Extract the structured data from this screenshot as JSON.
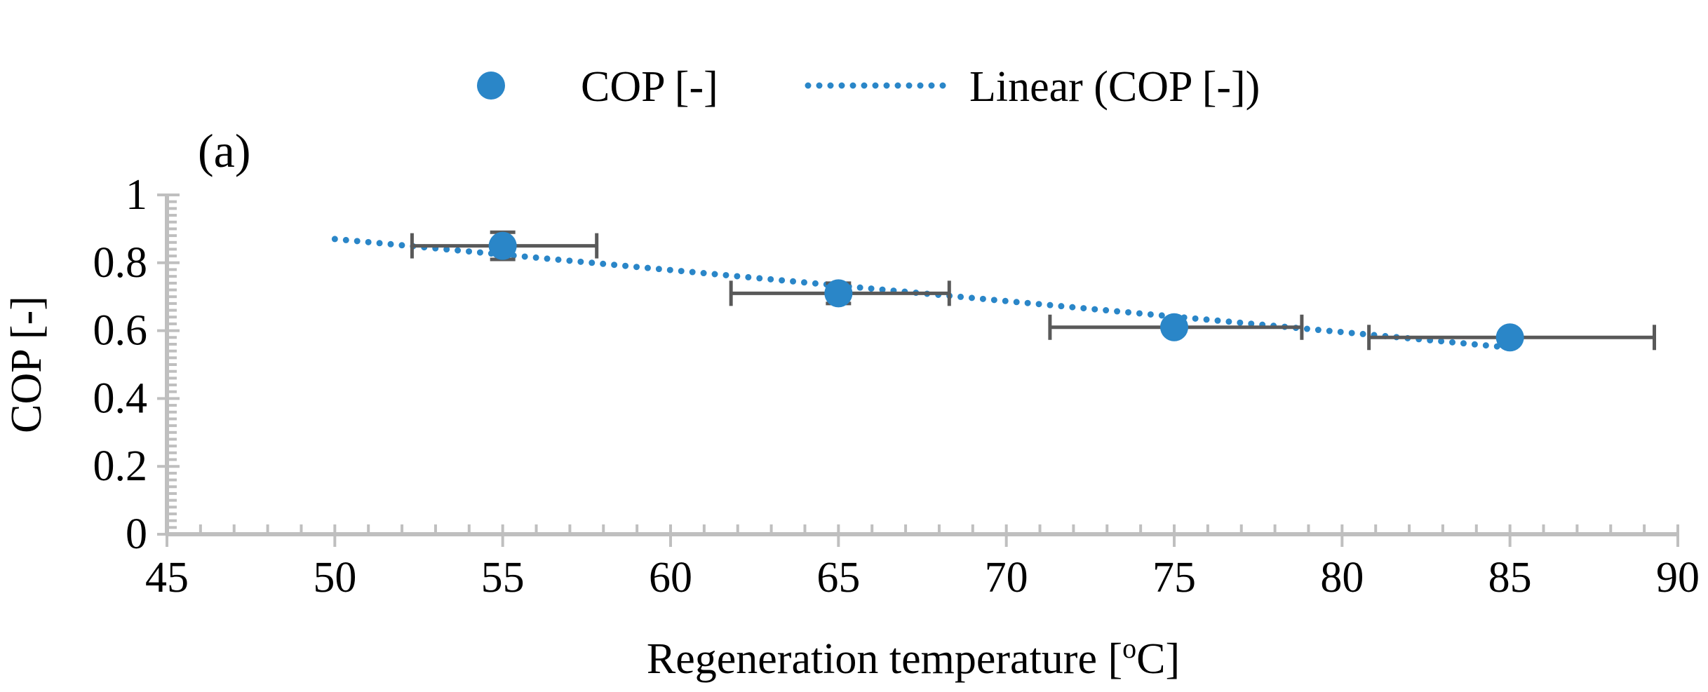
{
  "chart_data": {
    "type": "scatter",
    "panel_label": "(a)",
    "xlabel": "Regeneration temperature [",
    "xlabel_sup": "o",
    "xlabel_suffix": "C]",
    "ylabel": "COP [-]",
    "xlim": [
      45,
      90
    ],
    "ylim": [
      0,
      1
    ],
    "x_ticks": [
      45,
      50,
      55,
      60,
      65,
      70,
      75,
      80,
      85,
      90
    ],
    "y_ticks": [
      0,
      0.2,
      0.4,
      0.6,
      0.8,
      1
    ],
    "y_tick_labels": [
      "0",
      "0.2",
      "0.4",
      "0.6",
      "0.8",
      "1"
    ],
    "x_tick_labels": [
      "45",
      "50",
      "55",
      "60",
      "65",
      "70",
      "75",
      "80",
      "85",
      "90"
    ],
    "grid": false,
    "legend_position": "top",
    "series": [
      {
        "name": "COP [-]",
        "color": "#2A86C8",
        "points": [
          {
            "x": 55,
            "y": 0.85,
            "x_err_low": 52.3,
            "x_err_high": 57.8,
            "y_err_low": 0.81,
            "y_err_high": 0.89
          },
          {
            "x": 65,
            "y": 0.71,
            "x_err_low": 61.8,
            "x_err_high": 68.3,
            "y_err_low": 0.68,
            "y_err_high": 0.74
          },
          {
            "x": 75,
            "y": 0.61,
            "x_err_low": 71.3,
            "x_err_high": 78.8,
            "y_err_low": 0.6,
            "y_err_high": 0.62
          },
          {
            "x": 85,
            "y": 0.58,
            "x_err_low": 80.8,
            "x_err_high": 89.3,
            "y_err_low": 0.57,
            "y_err_high": 0.59
          }
        ]
      }
    ],
    "trendline": {
      "name": "Linear (COP [-])",
      "color": "#2A86C8",
      "style": "dotted",
      "x": [
        50,
        85
      ],
      "y": [
        0.87,
        0.55
      ]
    },
    "errorbar_color": "#595959",
    "axis_color": "#BFBFBF"
  }
}
